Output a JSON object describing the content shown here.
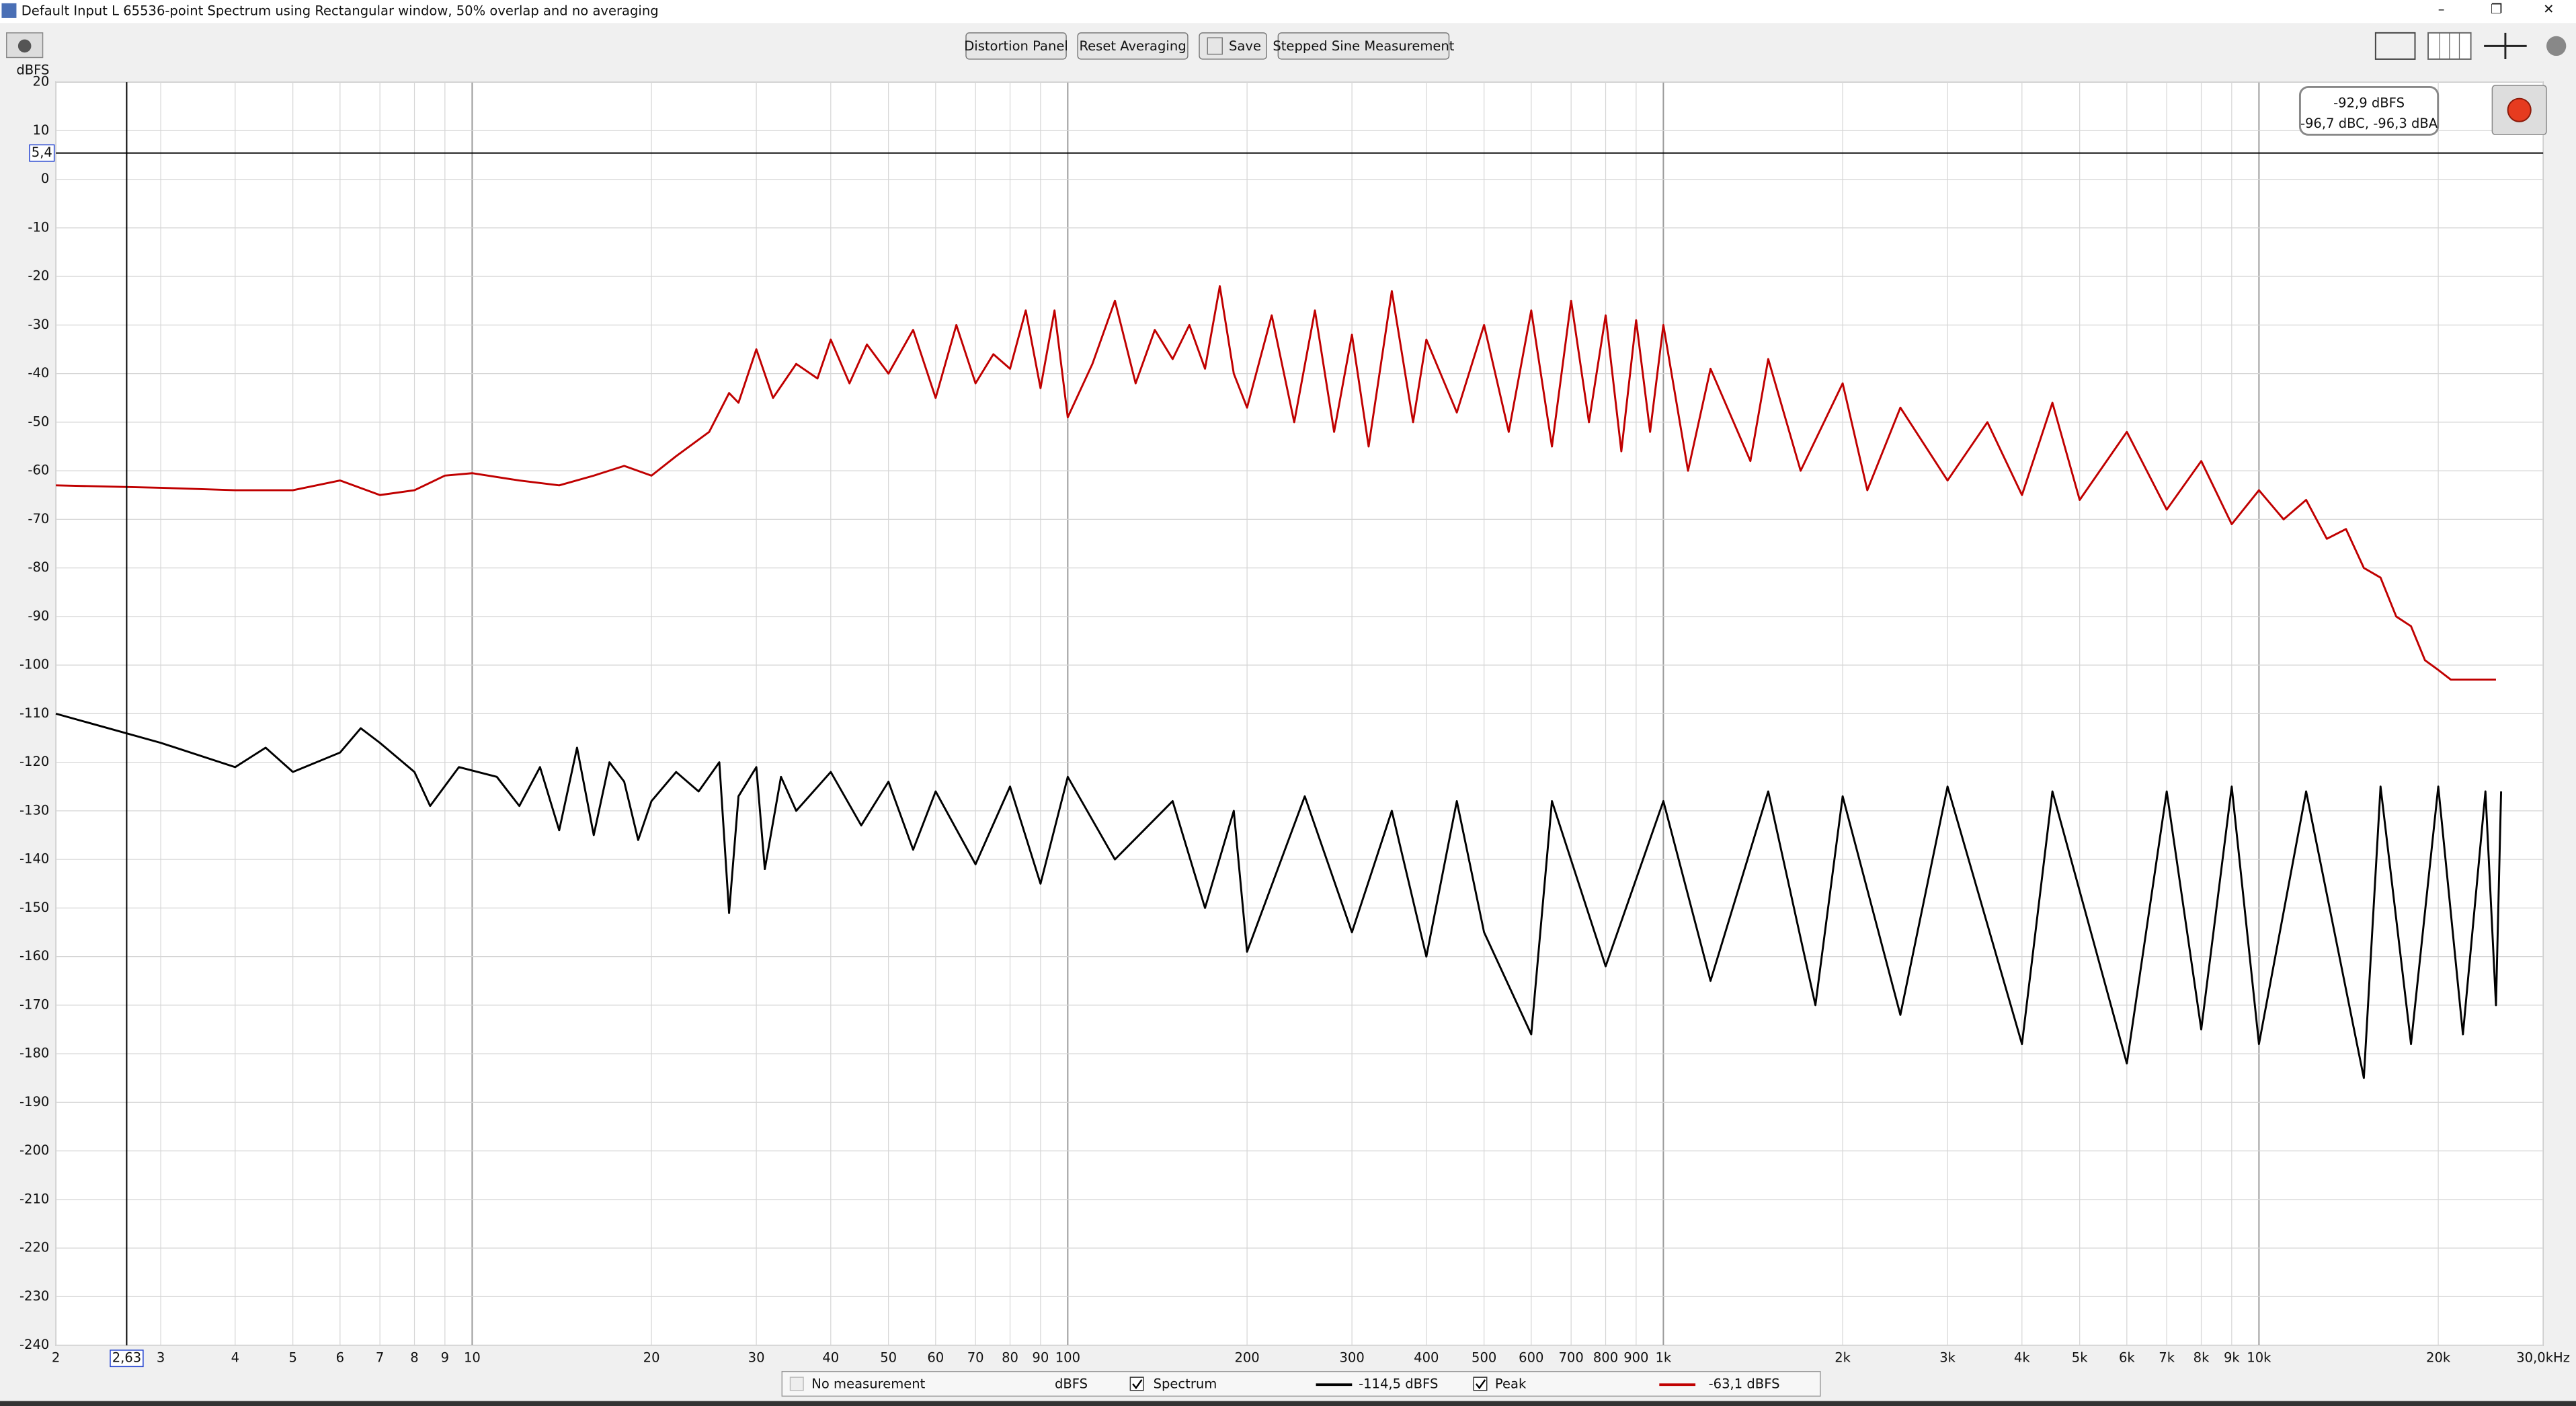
{
  "window": {
    "title": "Default Input L 65536-point Spectrum using Rectangular window, 50% overlap and no averaging"
  },
  "toolbar": {
    "buttons": [
      "Distortion Panel",
      "Reset Averaging",
      "Save",
      "Stepped Sine Measurement"
    ]
  },
  "readout": {
    "main": "-92,9 dBFS",
    "sub": "-96,7 dBC, -96,3 dBA"
  },
  "legend": {
    "placeholder": "No measurement",
    "placeholder_unit": "dBFS"
  },
  "chart_data": {
    "type": "line",
    "y_label": "dBFS",
    "log_x": true,
    "grid": true,
    "xlim": [
      2,
      30000
    ],
    "ylim": [
      -240,
      20
    ],
    "xticks": [
      2,
      3,
      4,
      5,
      6,
      7,
      8,
      9,
      10,
      20,
      30,
      40,
      50,
      60,
      70,
      80,
      90,
      100,
      200,
      300,
      400,
      500,
      600,
      700,
      800,
      900,
      {
        "value": 1000,
        "label": "1k"
      },
      {
        "value": 2000,
        "label": "2k"
      },
      {
        "value": 3000,
        "label": "3k"
      },
      {
        "value": 4000,
        "label": "4k"
      },
      {
        "value": 5000,
        "label": "5k"
      },
      {
        "value": 6000,
        "label": "6k"
      },
      {
        "value": 7000,
        "label": "7k"
      },
      {
        "value": 8000,
        "label": "8k"
      },
      {
        "value": 9000,
        "label": "9k"
      },
      {
        "value": 10000,
        "label": "10k"
      },
      {
        "value": 20000,
        "label": "20k"
      },
      {
        "value": 30000,
        "label": "30,0kHz"
      }
    ],
    "yticks": [
      20,
      10,
      0,
      -10,
      -20,
      -30,
      -40,
      -50,
      -60,
      -70,
      -80,
      -90,
      -100,
      -110,
      -120,
      -130,
      -140,
      -150,
      -160,
      -170,
      -180,
      -190,
      -200,
      -210,
      -220,
      -230,
      -240
    ],
    "cursor": {
      "x": {
        "value": 2.63,
        "label": "2,63"
      },
      "y": {
        "value": 5.4,
        "label": "5,4"
      }
    },
    "series": [
      {
        "name": "Spectrum",
        "color": "#000000",
        "readout": "-114,5 dBFS",
        "x": [
          2,
          3,
          4,
          4.5,
          5,
          6,
          6.5,
          7,
          8,
          8.5,
          9.5,
          11,
          12,
          13,
          14,
          15,
          16,
          17,
          18,
          19,
          20,
          22,
          24,
          26,
          27,
          28,
          30,
          31,
          33,
          35,
          40,
          45,
          50,
          55,
          60,
          70,
          80,
          90,
          100,
          120,
          150,
          170,
          190,
          200,
          250,
          300,
          350,
          400,
          450,
          500,
          600,
          650,
          800,
          1000,
          1200,
          1500,
          1800,
          2000,
          2500,
          3000,
          4000,
          4500,
          6000,
          7000,
          8000,
          9000,
          10000,
          12000,
          15000,
          16000,
          18000,
          20000,
          22000,
          24000,
          25000,
          25500
        ],
        "values": [
          -110,
          -116,
          -121,
          -117,
          -122,
          -118,
          -113,
          -116,
          -122,
          -129,
          -121,
          -123,
          -129,
          -121,
          -134,
          -117,
          -135,
          -120,
          -124,
          -136,
          -128,
          -122,
          -126,
          -120,
          -151,
          -127,
          -121,
          -142,
          -123,
          -130,
          -122,
          -133,
          -124,
          -138,
          -126,
          -141,
          -125,
          -145,
          -123,
          -140,
          -128,
          -150,
          -130,
          -159,
          -127,
          -155,
          -130,
          -160,
          -128,
          -155,
          -176,
          -128,
          -162,
          -128,
          -165,
          -126,
          -170,
          -127,
          -172,
          -125,
          -178,
          -126,
          -182,
          -126,
          -175,
          -125,
          -178,
          -126,
          -185,
          -125,
          -178,
          -125,
          -176,
          -126,
          -170,
          -126
        ]
      },
      {
        "name": "Peak",
        "color": "#c00000",
        "readout": "-63,1 dBFS",
        "x": [
          2,
          3,
          4,
          5,
          6,
          7,
          8,
          9,
          10,
          12,
          14,
          16,
          18,
          20,
          22,
          25,
          27,
          28,
          30,
          32,
          35,
          38,
          40,
          43,
          46,
          50,
          55,
          60,
          65,
          70,
          75,
          80,
          85,
          90,
          95,
          100,
          110,
          120,
          130,
          140,
          150,
          160,
          170,
          180,
          190,
          200,
          220,
          240,
          260,
          280,
          300,
          320,
          350,
          380,
          400,
          450,
          500,
          550,
          600,
          650,
          700,
          750,
          800,
          850,
          900,
          950,
          1000,
          1100,
          1200,
          1400,
          1500,
          1700,
          2000,
          2200,
          2500,
          3000,
          3500,
          4000,
          4500,
          5000,
          6000,
          7000,
          8000,
          9000,
          10000,
          11000,
          12000,
          13000,
          14000,
          15000,
          16000,
          17000,
          18000,
          19000,
          20000,
          21000,
          24000,
          25000
        ],
        "values": [
          -63,
          -63.5,
          -64,
          -64,
          -62,
          -65,
          -64,
          -61,
          -60.5,
          -62,
          -63,
          -61,
          -59,
          -61,
          -57,
          -52,
          -44,
          -46,
          -35,
          -45,
          -38,
          -41,
          -33,
          -42,
          -34,
          -40,
          -31,
          -45,
          -30,
          -42,
          -36,
          -39,
          -27,
          -43,
          -27,
          -49,
          -38,
          -25,
          -42,
          -31,
          -37,
          -30,
          -39,
          -22,
          -40,
          -47,
          -28,
          -50,
          -27,
          -52,
          -32,
          -55,
          -23,
          -50,
          -33,
          -48,
          -30,
          -52,
          -27,
          -55,
          -25,
          -50,
          -28,
          -56,
          -29,
          -52,
          -30,
          -60,
          -39,
          -58,
          -37,
          -60,
          -42,
          -64,
          -47,
          -62,
          -50,
          -65,
          -46,
          -66,
          -52,
          -68,
          -58,
          -71,
          -64,
          -70,
          -66,
          -74,
          -72,
          -80,
          -82,
          -90,
          -92,
          -99,
          -101,
          -103,
          -103,
          -103
        ]
      }
    ]
  }
}
